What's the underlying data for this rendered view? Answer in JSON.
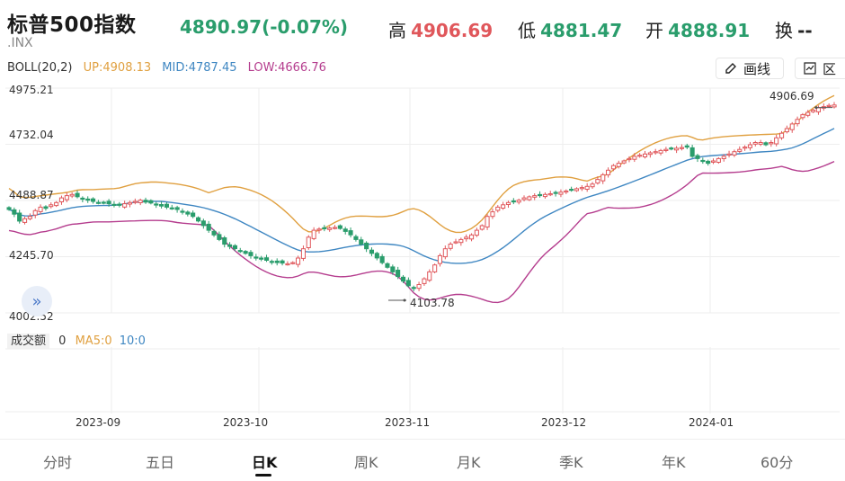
{
  "header": {
    "title": "标普500指数",
    "code": ".INX",
    "price": "4890.97(-0.07%)",
    "high_label": "高",
    "high_value": "4906.69",
    "low_label": "低",
    "low_value": "4881.47",
    "open_label": "开",
    "open_value": "4888.91",
    "turnover_label": "换",
    "turnover_value": "--"
  },
  "indicator": {
    "name": "BOLL(20,2)",
    "up": "UP:4908.13",
    "mid": "MID:4787.45",
    "low": "LOW:4666.76",
    "draw_label": "画线",
    "zone_label": "区"
  },
  "colors": {
    "up_band": "#e0a040",
    "mid_band": "#3f87c2",
    "low_band": "#b53d8e",
    "rise": "#e0575b",
    "fall": "#2a9d6c"
  },
  "chart_data": {
    "type": "candlestick",
    "y_ticks": [
      "4975.21",
      "4732.04",
      "4488.87",
      "4245.70",
      "4002.52"
    ],
    "ylim": [
      4002.52,
      4975.21
    ],
    "x_ticks": [
      "2023-09",
      "2023-10",
      "2023-11",
      "2023-12",
      "2024-01"
    ],
    "max_label": "4906.69",
    "min_label": "4103.78",
    "close": [
      4450,
      4430,
      4400,
      4410,
      4420,
      4445,
      4460,
      4455,
      4470,
      4480,
      4500,
      4510,
      4515,
      4505,
      4495,
      4490,
      4485,
      4480,
      4478,
      4475,
      4470,
      4468,
      4475,
      4480,
      4485,
      4490,
      4482,
      4478,
      4470,
      4465,
      4460,
      4455,
      4450,
      4440,
      4430,
      4420,
      4400,
      4380,
      4360,
      4340,
      4320,
      4300,
      4290,
      4280,
      4270,
      4260,
      4250,
      4240,
      4235,
      4230,
      4225,
      4220,
      4218,
      4215,
      4220,
      4240,
      4280,
      4330,
      4360,
      4365,
      4368,
      4370,
      4372,
      4368,
      4355,
      4340,
      4320,
      4300,
      4280,
      4260,
      4240,
      4220,
      4200,
      4180,
      4160,
      4140,
      4120,
      4110,
      4125,
      4150,
      4180,
      4210,
      4250,
      4280,
      4300,
      4310,
      4320,
      4330,
      4340,
      4360,
      4380,
      4420,
      4440,
      4460,
      4470,
      4480,
      4485,
      4490,
      4500,
      4505,
      4510,
      4512,
      4515,
      4518,
      4520,
      4525,
      4530,
      4535,
      4540,
      4545,
      4550,
      4560,
      4580,
      4600,
      4620,
      4640,
      4650,
      4660,
      4670,
      4680,
      4685,
      4690,
      4695,
      4700,
      4705,
      4710,
      4712,
      4715,
      4718,
      4720,
      4680,
      4670,
      4660,
      4650,
      4660,
      4670,
      4680,
      4690,
      4700,
      4710,
      4720,
      4730,
      4740,
      4740,
      4730,
      4740,
      4760,
      4780,
      4800,
      4820,
      4840,
      4860,
      4870,
      4880,
      4890,
      4895,
      4900,
      4902
    ],
    "volume": "0",
    "ma5_label": "MA5:0",
    "ma10_label": "10:0",
    "volume_label": "成交额"
  },
  "tabs": [
    "分时",
    "五日",
    "日K",
    "周K",
    "月K",
    "季K",
    "年K",
    "60分"
  ],
  "active_tab": "日K"
}
